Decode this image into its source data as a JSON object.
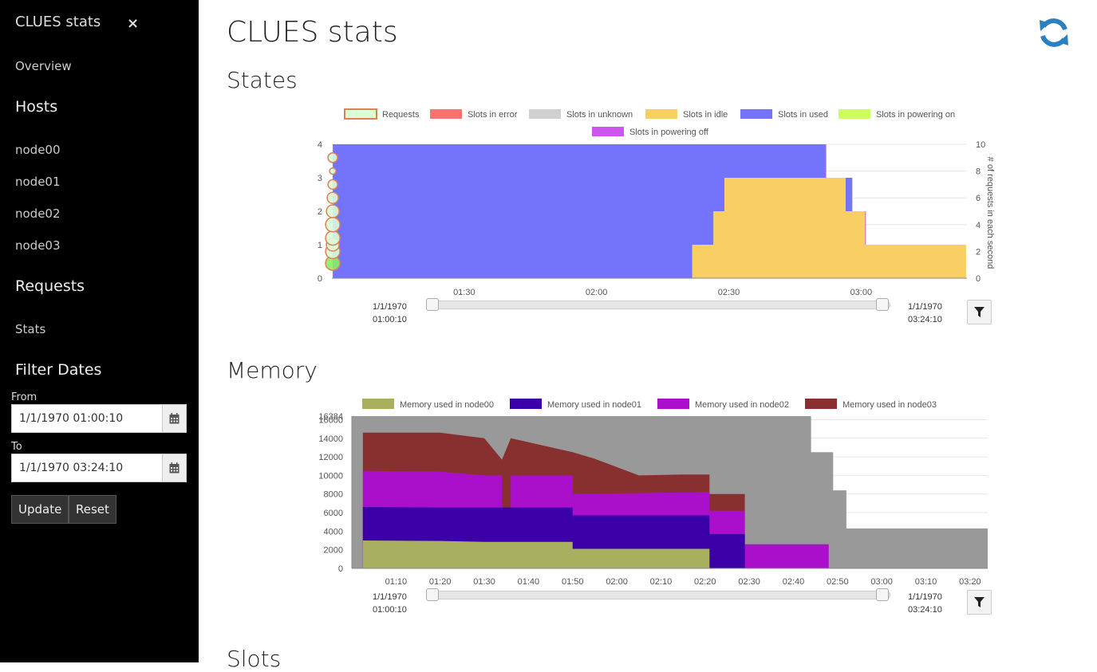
{
  "app": {
    "title": "CLUES stats"
  },
  "sidebar": {
    "title": "CLUES stats",
    "close": "×",
    "overview": "Overview",
    "hosts_header": "Hosts",
    "hosts": [
      "node00",
      "node01",
      "node02",
      "node03"
    ],
    "requests_header": "Requests",
    "stats": "Stats",
    "filter_header": "Filter Dates",
    "from_label": "From",
    "from_value": "1/1/1970 01:00:10",
    "to_label": "To",
    "to_value": "1/1/1970 03:24:10",
    "update_label": "Update",
    "reset_label": "Reset"
  },
  "main": {
    "title": "CLUES stats",
    "sections": {
      "states": "States",
      "memory": "Memory",
      "slots": "Slots"
    }
  },
  "range": {
    "start_line1": "1/1/1970",
    "start_line2": "01:00:10",
    "end_line1": "1/1/1970",
    "end_line2": "03:24:10"
  },
  "colors": {
    "requests_fill": "#d9fcd9",
    "requests_border": "#e08050",
    "error": "#f87272",
    "unknown": "#d0d0d0",
    "idle": "#f9ce62",
    "used": "#7373fb",
    "powering_on": "#ccfc60",
    "powering_off": "#cc55ee",
    "mem_node00": "#a8b060",
    "mem_node01": "#3c00a8",
    "mem_node02": "#aa10cc",
    "mem_node03": "#883030",
    "mem_total": "#999999",
    "accent": "#2a80c0"
  },
  "chart_data": [
    {
      "type": "area",
      "legend": [
        "Requests",
        "Slots in error",
        "Slots in unknown",
        "Slots in idle",
        "Slots in used",
        "Slots in powering on",
        "Slots in powering off"
      ],
      "legend_placement": "top",
      "y_left_ticks": [
        "0",
        "1",
        "2",
        "3",
        "4"
      ],
      "y_right_ticks": [
        "0",
        "2",
        "4",
        "6",
        "8",
        "10"
      ],
      "y_right_label": "# of requests in each second",
      "x_ticks": [
        "01:30",
        "02:00",
        "02:30",
        "03:00"
      ],
      "ylim": [
        0,
        4
      ],
      "y2lim": [
        0,
        10
      ],
      "x_minutes": [
        60,
        204
      ],
      "series": [
        {
          "name": "Slots in used",
          "points": [
            [
              60.2,
              4
            ],
            [
              172,
              4
            ],
            [
              172,
              1
            ],
            [
              176.5,
              1
            ],
            [
              176.5,
              2
            ],
            [
              178,
              2
            ],
            [
              178,
              1
            ],
            [
              203.8,
              1
            ]
          ]
        },
        {
          "name": "Slots in idle",
          "points": [
            [
              141.7,
              1
            ],
            [
              146.5,
              1
            ],
            [
              146.5,
              2
            ],
            [
              149,
              2
            ],
            [
              149,
              3
            ],
            [
              176.5,
              3
            ],
            [
              178,
              3
            ],
            [
              178,
              2
            ],
            [
              181,
              2
            ],
            [
              181,
              1
            ],
            [
              203.8,
              1
            ]
          ]
        },
        {
          "name": "Requests",
          "x": [
            60.2,
            60.2,
            60.2,
            60.2,
            60.2,
            60.2,
            60.2,
            60.2,
            60.2,
            60.2
          ],
          "y": [
            1,
            2,
            3,
            4,
            5,
            6,
            7,
            8,
            9,
            8
          ]
        }
      ]
    },
    {
      "type": "area",
      "legend": [
        "Memory used in node00",
        "Memory used in node01",
        "Memory used in node02",
        "Memory used in node03"
      ],
      "legend_placement": "top",
      "y_ticks": [
        "0",
        "2000",
        "4000",
        "6000",
        "8000",
        "10000",
        "12000",
        "14000",
        "16000",
        "16384"
      ],
      "x_ticks": [
        "01:10",
        "01:20",
        "01:30",
        "01:40",
        "01:50",
        "02:00",
        "02:10",
        "02:20",
        "02:30",
        "02:40",
        "02:50",
        "03:00",
        "03:10",
        "03:20"
      ],
      "ylim": [
        0,
        16384
      ],
      "x_minutes": [
        60,
        204
      ],
      "series": [
        {
          "name": "Memory used in node00",
          "points": [
            [
              60,
              3000
            ],
            [
              80,
              2950
            ],
            [
              90,
              2850
            ],
            [
              110,
              2850
            ],
            [
              110,
              2100
            ],
            [
              141,
              2100
            ],
            [
              141,
              0
            ]
          ]
        },
        {
          "name": "Memory used in node01",
          "points": [
            [
              60,
              6600
            ],
            [
              80,
              6550
            ],
            [
              90,
              6550
            ],
            [
              100,
              6550
            ],
            [
              110,
              6550
            ],
            [
              110,
              5700
            ],
            [
              141,
              5700
            ],
            [
              141,
              3700
            ],
            [
              149,
              3700
            ],
            [
              149,
              0
            ]
          ]
        },
        {
          "name": "Memory used in node02",
          "points": [
            [
              60,
              10500
            ],
            [
              80,
              10400
            ],
            [
              90,
              10000
            ],
            [
              94,
              10000
            ],
            [
              94,
              4300
            ],
            [
              96,
              4300
            ],
            [
              96,
              10000
            ],
            [
              110,
              10000
            ],
            [
              110,
              8000
            ],
            [
              141,
              8200
            ],
            [
              141,
              6200
            ],
            [
              149,
              6200
            ],
            [
              149,
              2600
            ],
            [
              168,
              2600
            ],
            [
              168,
              0
            ]
          ]
        },
        {
          "name": "Memory used in node03",
          "points": [
            [
              60,
              14600
            ],
            [
              80,
              14600
            ],
            [
              90,
              14000
            ],
            [
              94,
              11700
            ],
            [
              96,
              14000
            ],
            [
              110,
              12500
            ],
            [
              115,
              11800
            ],
            [
              125,
              10000
            ],
            [
              135,
              10100
            ],
            [
              141,
              10100
            ],
            [
              141,
              8000
            ],
            [
              149,
              8000
            ]
          ]
        },
        {
          "name": "Total",
          "points": [
            [
              60,
              16384
            ],
            [
              164,
              16384
            ],
            [
              164,
              12500
            ],
            [
              169,
              12500
            ],
            [
              169,
              8400
            ],
            [
              172,
              8400
            ],
            [
              172,
              4300
            ],
            [
              204,
              4300
            ]
          ]
        }
      ]
    }
  ]
}
